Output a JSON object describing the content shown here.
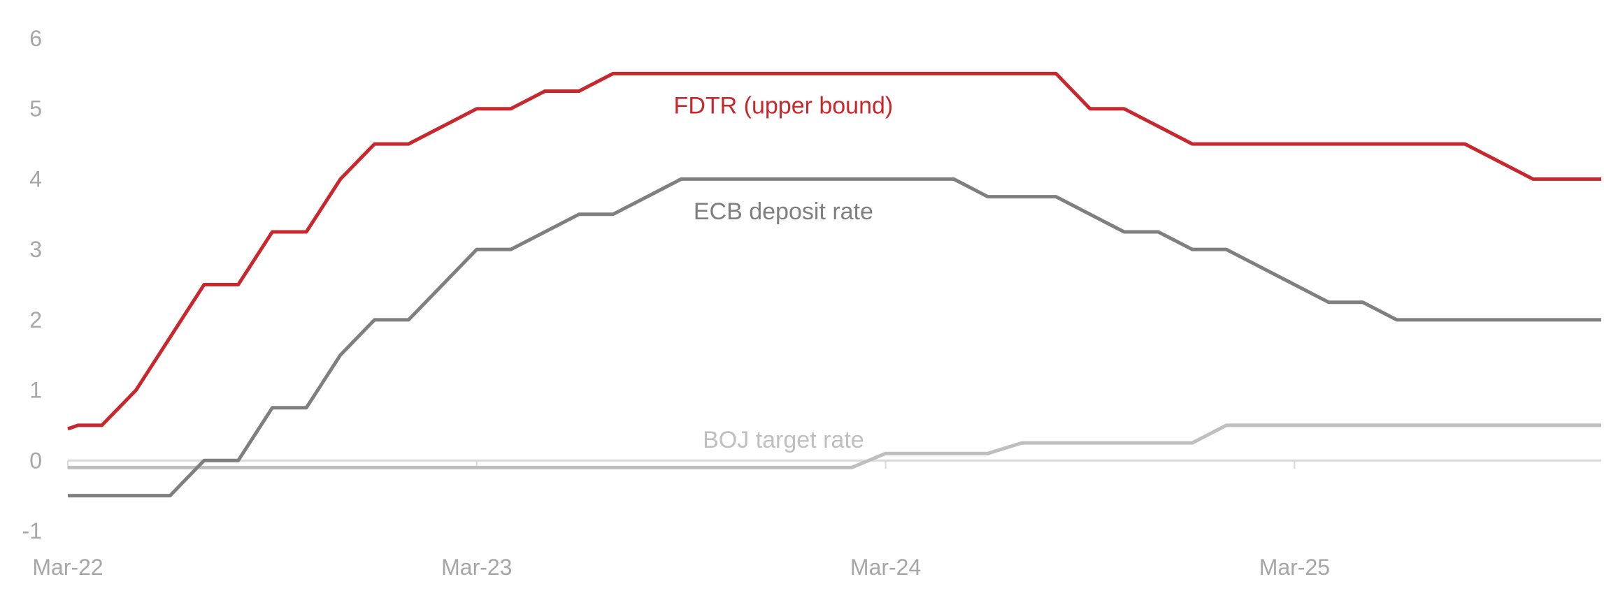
{
  "chart_data": {
    "type": "line",
    "title": "",
    "xlabel": "",
    "ylabel": "",
    "ylim": [
      -1,
      6
    ],
    "yticks": [
      "6",
      "5",
      "4",
      "3",
      "2",
      "1",
      "0",
      "-1"
    ],
    "xticks": [
      "Mar-22",
      "Mar-23",
      "Mar-24",
      "Mar-25"
    ],
    "xlim": [
      "2022-03",
      "2025-12"
    ],
    "grid": false,
    "legend": "none",
    "series": [
      {
        "name": "FDTR (upper bound)",
        "color": "#c8282d",
        "points": [
          [
            "2022-03",
            0.45
          ],
          [
            "2022-03-10",
            0.5
          ],
          [
            "2022-04",
            0.5
          ],
          [
            "2022-05",
            1.0
          ],
          [
            "2022-07",
            2.5
          ],
          [
            "2022-08",
            2.5
          ],
          [
            "2022-09",
            3.25
          ],
          [
            "2022-10",
            3.25
          ],
          [
            "2022-11",
            4.0
          ],
          [
            "2022-12",
            4.5
          ],
          [
            "2023-01",
            4.5
          ],
          [
            "2023-02",
            4.75
          ],
          [
            "2023-03",
            5.0
          ],
          [
            "2023-04",
            5.0
          ],
          [
            "2023-05",
            5.25
          ],
          [
            "2023-06",
            5.25
          ],
          [
            "2023-07",
            5.5
          ],
          [
            "2024-08",
            5.5
          ],
          [
            "2024-09",
            5.0
          ],
          [
            "2024-10",
            5.0
          ],
          [
            "2024-11",
            4.75
          ],
          [
            "2024-12",
            4.5
          ],
          [
            "2025-08",
            4.5
          ],
          [
            "2025-10",
            4.0
          ],
          [
            "2025-12",
            4.0
          ]
        ]
      },
      {
        "name": "ECB deposit rate",
        "color": "#7f7f7f",
        "points": [
          [
            "2022-03",
            -0.5
          ],
          [
            "2022-06",
            -0.5
          ],
          [
            "2022-07",
            0.0
          ],
          [
            "2022-08",
            0.0
          ],
          [
            "2022-09",
            0.75
          ],
          [
            "2022-10",
            0.75
          ],
          [
            "2022-11",
            1.5
          ],
          [
            "2022-12",
            2.0
          ],
          [
            "2023-01",
            2.0
          ],
          [
            "2023-02",
            2.5
          ],
          [
            "2023-03",
            3.0
          ],
          [
            "2023-04",
            3.0
          ],
          [
            "2023-05",
            3.25
          ],
          [
            "2023-06",
            3.5
          ],
          [
            "2023-07",
            3.5
          ],
          [
            "2023-08",
            3.75
          ],
          [
            "2023-09",
            4.0
          ],
          [
            "2024-05",
            4.0
          ],
          [
            "2024-06",
            3.75
          ],
          [
            "2024-08",
            3.75
          ],
          [
            "2024-10",
            3.25
          ],
          [
            "2024-11",
            3.25
          ],
          [
            "2024-12",
            3.0
          ],
          [
            "2025-01",
            3.0
          ],
          [
            "2025-03",
            2.5
          ],
          [
            "2025-04",
            2.25
          ],
          [
            "2025-05",
            2.25
          ],
          [
            "2025-06",
            2.0
          ],
          [
            "2025-12",
            2.0
          ]
        ]
      },
      {
        "name": "BOJ target rate",
        "color": "#bfbfbf",
        "points": [
          [
            "2022-03",
            -0.1
          ],
          [
            "2024-02",
            -0.1
          ],
          [
            "2024-03",
            0.1
          ],
          [
            "2024-06",
            0.1
          ],
          [
            "2024-07",
            0.25
          ],
          [
            "2024-12",
            0.25
          ],
          [
            "2025-01",
            0.5
          ],
          [
            "2025-12",
            0.5
          ]
        ]
      }
    ]
  }
}
